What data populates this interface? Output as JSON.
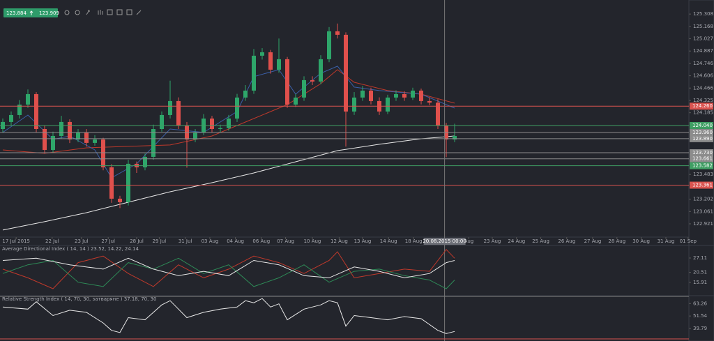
{
  "toolbar": {
    "bid": "123.884",
    "ask": "123.909"
  },
  "chart_data": [
    {
      "type": "candlestick",
      "open": [
        124.0,
        124.08,
        124.159,
        124.278,
        124.397,
        124.0,
        123.762,
        123.921,
        124.08,
        123.881,
        123.961,
        123.842,
        123.881,
        123.564,
        123.207,
        123.167,
        123.604,
        123.564,
        123.683,
        124.0,
        124.159,
        124.318,
        124.04,
        123.881,
        123.961,
        124.119,
        124.0,
        124.01,
        124.119,
        124.358,
        124.437,
        124.834,
        124.873,
        124.675,
        124.794,
        124.278,
        124.358,
        124.556,
        124.54,
        124.794,
        125.112,
        125.072,
        124.199,
        124.358,
        124.437,
        124.318,
        124.199,
        124.358,
        124.397,
        124.358,
        124.437,
        124.318,
        124.3,
        124.04,
        123.881
      ],
      "high": [
        124.12,
        124.2,
        124.33,
        124.45,
        124.42,
        124.04,
        123.97,
        124.15,
        124.11,
        124.0,
        124.0,
        123.93,
        123.9,
        123.6,
        123.24,
        123.65,
        123.63,
        123.72,
        124.05,
        124.2,
        124.55,
        124.36,
        124.08,
        124.0,
        124.17,
        124.15,
        124.05,
        124.16,
        124.4,
        124.5,
        124.91,
        124.92,
        124.9,
        125.03,
        124.82,
        124.4,
        124.6,
        124.6,
        124.84,
        125.16,
        125.2,
        125.1,
        124.42,
        124.49,
        124.47,
        124.36,
        124.39,
        124.44,
        124.43,
        124.47,
        124.46,
        124.36,
        124.34,
        124.07,
        124.06
      ],
      "low": [
        123.96,
        124.04,
        124.12,
        124.24,
        123.96,
        123.72,
        123.73,
        123.89,
        123.84,
        123.85,
        123.8,
        123.81,
        123.53,
        123.16,
        123.1,
        123.13,
        123.5,
        123.53,
        123.65,
        123.97,
        124.12,
        124.0,
        123.56,
        123.85,
        123.93,
        123.96,
        123.96,
        123.98,
        124.08,
        124.32,
        124.4,
        124.79,
        124.63,
        124.64,
        124.24,
        124.25,
        124.32,
        124.5,
        124.51,
        124.76,
        125.03,
        123.8,
        124.16,
        124.32,
        124.28,
        124.16,
        124.17,
        124.32,
        124.32,
        124.33,
        124.28,
        124.27,
        124.0,
        123.68,
        123.85
      ],
      "close": [
        124.08,
        124.159,
        124.278,
        124.397,
        124.0,
        123.762,
        123.921,
        124.08,
        123.881,
        123.961,
        123.842,
        123.881,
        123.564,
        123.207,
        123.167,
        123.604,
        123.564,
        123.683,
        124.0,
        124.159,
        124.318,
        124.04,
        123.881,
        123.961,
        124.119,
        124.0,
        124.01,
        124.119,
        124.358,
        124.437,
        124.834,
        124.873,
        124.675,
        124.794,
        124.278,
        124.358,
        124.556,
        124.54,
        124.794,
        125.112,
        125.072,
        124.199,
        124.358,
        124.437,
        124.318,
        124.199,
        124.358,
        124.397,
        124.358,
        124.437,
        124.318,
        124.3,
        124.04,
        123.881,
        123.921
      ],
      "up_color": "#2ea66a",
      "down_color": "#e0504c",
      "lines": [
        {
          "color": "#e8e8e8",
          "x": [
            0,
            5,
            10,
            15,
            20,
            25,
            30,
            35,
            40,
            45,
            50,
            54
          ],
          "values": [
            122.85,
            122.945,
            123.048,
            123.167,
            123.286,
            123.389,
            123.5,
            123.627,
            123.754,
            123.826,
            123.889,
            123.921
          ]
        },
        {
          "color": "#c0392b",
          "x": [
            0,
            5,
            10,
            15,
            20,
            25,
            30,
            34,
            38,
            40,
            42,
            46,
            50,
            54
          ],
          "values": [
            123.762,
            123.723,
            123.786,
            123.802,
            123.818,
            123.921,
            124.119,
            124.278,
            124.516,
            124.675,
            124.532,
            124.437,
            124.397,
            124.294
          ]
        },
        {
          "color": "#3b5fa8",
          "x": [
            0,
            3,
            6,
            8,
            11,
            13,
            16,
            20,
            24,
            28,
            30,
            33,
            35,
            38,
            40,
            42,
            45,
            50,
            54
          ],
          "values": [
            123.961,
            124.159,
            123.881,
            123.921,
            123.762,
            123.445,
            123.604,
            124.0,
            123.961,
            124.199,
            124.596,
            124.675,
            124.397,
            124.635,
            124.715,
            124.477,
            124.437,
            124.397,
            124.238
          ]
        }
      ],
      "levels": [
        {
          "value": 124.26,
          "label": "124.260",
          "color": "#d9534f"
        },
        {
          "value": 124.04,
          "label": "124.040",
          "color": "#3f9e63"
        },
        {
          "value": 123.96,
          "label": "123.960",
          "color": "#8c8c8c"
        },
        {
          "value": 123.89,
          "label": "123.890",
          "color": "#8c8c8c"
        },
        {
          "value": 123.73,
          "label": "123.730",
          "color": "#8c8c8c"
        },
        {
          "value": 123.661,
          "label": "123.661",
          "color": "#8c8c8c"
        },
        {
          "value": 123.582,
          "label": "123.582",
          "color": "#3f9e63"
        },
        {
          "value": 123.361,
          "label": "123.361",
          "color": "#d9534f"
        }
      ],
      "xlim": [
        -0.333,
        82
      ],
      "ylim": [
        122.77,
        125.468
      ],
      "yticks": [
        122.921,
        123.061,
        123.202,
        123.483,
        124.185,
        124.325,
        124.466,
        124.606,
        124.746,
        124.887,
        125.027,
        125.168,
        125.308
      ],
      "xticks": [
        {
          "value": 1.6,
          "label": "17 Jul 2015"
        },
        {
          "value": 5.9,
          "label": "22 Jul"
        },
        {
          "value": 9.4,
          "label": "23 Jul"
        },
        {
          "value": 12.6,
          "label": "27 Jul"
        },
        {
          "value": 16,
          "label": "28 Jul"
        },
        {
          "value": 18.7,
          "label": "29 Jul"
        },
        {
          "value": 21.8,
          "label": "31 Jul"
        },
        {
          "value": 24.75,
          "label": "03 Aug"
        },
        {
          "value": 27.8,
          "label": "04 Aug"
        },
        {
          "value": 30.9,
          "label": "06 Aug"
        },
        {
          "value": 33.8,
          "label": "07 Aug"
        },
        {
          "value": 37,
          "label": "10 Aug"
        },
        {
          "value": 40.2,
          "label": "12 Aug"
        },
        {
          "value": 43,
          "label": "13 Aug"
        },
        {
          "value": 46.1,
          "label": "14 Aug"
        },
        {
          "value": 49.1,
          "label": "18 Aug"
        },
        {
          "value": 55.7,
          "label": "Aug"
        },
        {
          "value": 58.5,
          "label": "23 Aug"
        },
        {
          "value": 61.4,
          "label": "24 Aug"
        },
        {
          "value": 64.3,
          "label": "25 Aug"
        },
        {
          "value": 67.4,
          "label": "26 Aug"
        },
        {
          "value": 70.5,
          "label": "27 Aug"
        },
        {
          "value": 73.4,
          "label": "28 Aug"
        },
        {
          "value": 76.3,
          "label": "30 Aug"
        },
        {
          "value": 79.25,
          "label": "31 Aug"
        },
        {
          "value": 81.9,
          "label": "01 Sep"
        }
      ],
      "crosshair": {
        "x": 52.8,
        "label": "20.08.2015 00:00"
      }
    },
    {
      "type": "line",
      "title": "Average Directional Index ( 14, 14 ) 23.52, 14.22, 24.14",
      "series": [
        {
          "color": "#c0392b",
          "x": [
            0,
            3,
            6,
            9,
            12,
            15,
            18,
            21,
            24,
            27,
            30,
            33,
            36,
            39,
            40,
            42,
            45,
            48,
            51,
            53,
            54
          ],
          "values": [
            22,
            18,
            13,
            25,
            28,
            20,
            14,
            24,
            18,
            22,
            28,
            25,
            20,
            26,
            30,
            18,
            20,
            22,
            21,
            31,
            27
          ]
        },
        {
          "color": "#2e8b57",
          "x": [
            0,
            3,
            6,
            9,
            12,
            15,
            18,
            21,
            24,
            27,
            30,
            33,
            36,
            39,
            42,
            45,
            48,
            51,
            53,
            54
          ],
          "values": [
            20,
            24,
            26,
            16,
            14,
            25,
            22,
            27,
            20,
            24,
            14,
            18,
            24,
            16,
            21,
            22,
            19,
            17,
            13,
            17
          ]
        },
        {
          "color": "#e8e8e8",
          "x": [
            0,
            4,
            8,
            12,
            15,
            18,
            21,
            24,
            27,
            30,
            33,
            36,
            39,
            42,
            45,
            48,
            51,
            53,
            54
          ],
          "values": [
            26,
            27,
            24,
            22,
            27,
            22,
            19,
            21,
            19,
            26,
            24,
            19,
            18,
            23,
            21,
            18,
            20,
            25,
            26
          ]
        }
      ],
      "ylim": [
        9.81,
        32.87
      ],
      "yticks": [
        27.11,
        20.51,
        15.91
      ]
    },
    {
      "type": "line",
      "title": "Relative Strength Index ( 14, 70, 30, затваряне ) 37.18, 70, 30",
      "series": [
        {
          "color": "#e8e8e8",
          "x": [
            0,
            3,
            4,
            6,
            8,
            10,
            12,
            13,
            14,
            15,
            17,
            19,
            20,
            22,
            24,
            26,
            28,
            29,
            30,
            31,
            32,
            33,
            34,
            36,
            38,
            39,
            40,
            41,
            42,
            44,
            46,
            48,
            50,
            52,
            53,
            54
          ],
          "values": [
            60,
            58,
            65,
            52,
            57,
            55,
            45,
            38,
            36,
            50,
            48,
            62,
            66,
            50,
            55,
            58,
            60,
            66,
            64,
            68,
            60,
            63,
            48,
            58,
            62,
            66,
            64,
            42,
            52,
            50,
            48,
            51,
            49,
            38,
            35,
            37
          ]
        }
      ],
      "levels": [
        {
          "value": 70,
          "color": "#777777"
        },
        {
          "value": 30,
          "color": "#d9534f"
        }
      ],
      "ylim": [
        28,
        70.7
      ],
      "yticks": [
        63.26,
        51.54,
        39.79
      ]
    }
  ]
}
